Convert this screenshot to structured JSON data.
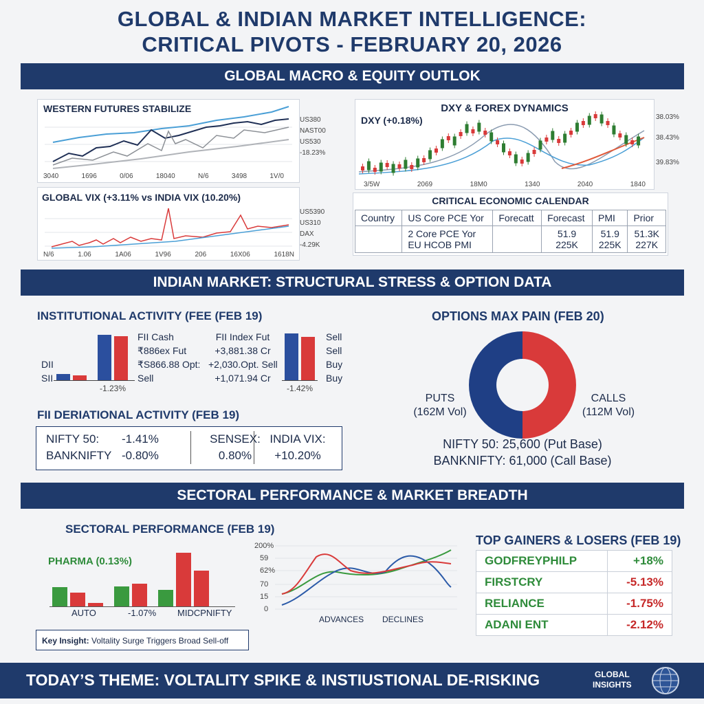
{
  "title_line1": "GLOBAL & INDIAN MARKET INTELLIGENCE:",
  "title_line2": "CRITICAL PIVOTS - FEBRUARY 20, 2026",
  "band1": "GLOBAL MACRO & EQUITY OUTLOK",
  "band2": "INDIAN MARKET: STRUCTURAL STRESS & OPTION DATA",
  "band3": "SECTORAL PERFORMANCE & MARKET BREADTH",
  "western": {
    "title": "WESTERN FUTURES STABILIZE",
    "legend": [
      "US380",
      "NAST00",
      "US530",
      "-18.23%"
    ],
    "xticks": [
      "3040",
      "1696",
      "0/06",
      "18040",
      "N/6",
      "3498",
      "1V/0"
    ]
  },
  "vix": {
    "title": "GLOBAL VIX (+3.11% vs INDIA VIX (10.20%)",
    "legend": [
      "US5390",
      "US310",
      "DAX",
      "-4.29K"
    ],
    "xticks": [
      "N/6",
      "1.06",
      "1A06",
      "1V96",
      "206",
      "16X06",
      "1618N"
    ]
  },
  "dxy": {
    "title": "DXY & FOREX DYNAMICS",
    "label": "DXY (+0.18%)",
    "yticks": [
      "38.03%",
      "38.43%",
      "39.83%"
    ],
    "xticks": [
      "3/5W",
      "2069",
      "18M0",
      "1340",
      "2040",
      "1840"
    ]
  },
  "calendar": {
    "title": "CRITICAL ECONOMIC CALENDAR",
    "headers": [
      "Country",
      "US Core PCE Yor",
      "Forecatt",
      "Forecast",
      "PMI",
      "Prior"
    ],
    "row_events": [
      "2 Core PCE Yor",
      "EU HCOB PMI"
    ],
    "col_forecast": [
      "51.9",
      "225K"
    ],
    "col_pmi": [
      "51.9",
      "225K"
    ],
    "col_prior": [
      "51.3K",
      "227K"
    ]
  },
  "institutional": {
    "title": "INSTITUTIONAL ACTIVITY (FEE (FEB 19)",
    "left_labels": [
      "DII",
      "SII"
    ],
    "col1": [
      "FII Cash",
      "₹886ex Fut",
      "₹S866.88 Opt:",
      "Sell"
    ],
    "col2": [
      "FII Index Fut",
      "+3,881.38 Cr",
      "+2,030.Opt. Sell",
      "+1,071.94 Cr"
    ],
    "col3": [
      "Sell",
      "Sell",
      "Buy",
      "Buy"
    ],
    "pct1": "-1.23%",
    "pct2": "-1.42%",
    "bars1": [
      {
        "v": 12,
        "c": "#2b4f9e"
      },
      {
        "v": 9,
        "c": "#d93a3a"
      },
      {
        "v": 88,
        "c": "#2b4f9e"
      },
      {
        "v": 85,
        "c": "#d93a3a"
      }
    ],
    "bars2": [
      {
        "v": 90,
        "c": "#2b4f9e"
      },
      {
        "v": 84,
        "c": "#d93a3a"
      }
    ]
  },
  "fii_deriv": {
    "title": "FII DERIATIONAL ACTIVITY (FEB 19)",
    "c1_l1": "NIFTY 50:",
    "c1_v1": "-1.41%",
    "c1_l2": "BANKNIFTY",
    "c1_v2": "-0.80%",
    "c2_l1": "SENSEX:",
    "c2_v1": "0.80%",
    "c3_l1": "INDIA VIX:",
    "c3_v1": "+10.20%"
  },
  "maxpain": {
    "title": "OPTIONS MAX PAIN (FEB 20)",
    "puts_label": "PUTS",
    "puts_vol": "(162M Vol)",
    "calls_label": "CALLS",
    "calls_vol": "(112M Vol)",
    "nifty": "NIFTY 50: 25,600 (Put Base)",
    "banknifty": "BANKNIFTY: 61,000 (Call Base)"
  },
  "sectoral": {
    "title": "SECTORAL PERFORMANCE (FEB 19)",
    "pharma": "PHARMA (0.13%)",
    "xlabels": [
      "AUTO",
      "-1.07%",
      "MIDCPNIFTY"
    ],
    "insight_bold": "Key Insight:",
    "insight_text": "Voltality Surge Triggers Broad Sell-off",
    "bars": [
      {
        "v": 30,
        "c": "#3a9a3f"
      },
      {
        "v": 22,
        "c": "#d93a3a"
      },
      {
        "v": 5,
        "c": "#d93a3a"
      },
      {
        "v": 31,
        "c": "#3a9a3f"
      },
      {
        "v": 36,
        "c": "#d93a3a"
      },
      {
        "v": 26,
        "c": "#3a9a3f"
      },
      {
        "v": 85,
        "c": "#d93a3a"
      },
      {
        "v": 57,
        "c": "#d93a3a"
      }
    ]
  },
  "breadth": {
    "yticks": [
      "200%",
      "59",
      "62%",
      "70",
      "15",
      "0"
    ],
    "xlabels": [
      "ADVANCES",
      "DECLINES"
    ]
  },
  "gainers": {
    "title": "TOP GAINERS & LOSERS (FEB 19)",
    "rows": [
      {
        "name": "GODFREYPHILP",
        "val": "+18%",
        "pos": true
      },
      {
        "name": "FIRSTCRY",
        "val": "-5.13%",
        "pos": false
      },
      {
        "name": "RELIANCE",
        "val": "-1.75%",
        "pos": false
      },
      {
        "name": "ADANI ENT",
        "val": "-2.12%",
        "pos": false
      }
    ]
  },
  "footer": {
    "theme": "TODAY’S THEME: VOLTALITY SPIKE  & INSTIUSTIONAL DE-RISKING",
    "brand1": "GLOBAL",
    "brand2": "INSIGHTS"
  }
}
